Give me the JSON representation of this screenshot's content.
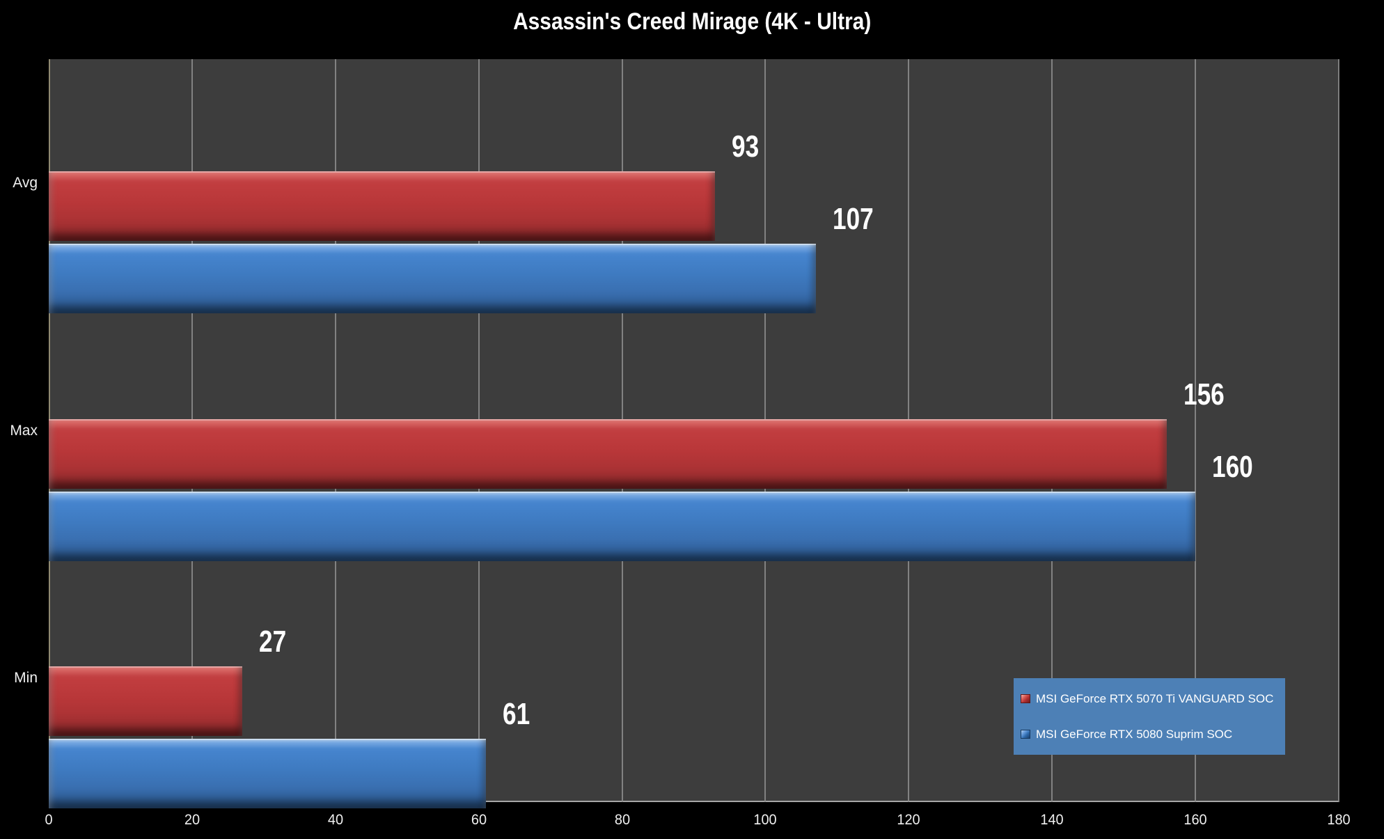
{
  "title": "Assassin's Creed Mirage (4K - Ultra)",
  "chart_data": {
    "type": "bar",
    "orientation": "horizontal",
    "title": "Assassin's Creed Mirage (4K - Ultra)",
    "categories": [
      "Avg",
      "Max",
      "Min"
    ],
    "series": [
      {
        "name": "MSI GeForce RTX 5070 Ti VANGUARD SOC",
        "color": "#bf3a3c",
        "values": [
          93,
          156,
          27
        ]
      },
      {
        "name": "MSI GeForce RTX 5080 Suprim SOC",
        "color": "#3d78bd",
        "values": [
          107,
          160,
          61
        ]
      }
    ],
    "data_labels": [
      [
        "93",
        "156",
        "27"
      ],
      [
        "107",
        "160",
        "61"
      ]
    ],
    "xlabel": "",
    "ylabel": "",
    "xlim": [
      0,
      180
    ],
    "xticks": [
      0,
      20,
      40,
      60,
      80,
      100,
      120,
      140,
      160,
      180
    ],
    "grid": true,
    "legend_position": "bottom-right"
  },
  "colors": {
    "page_background": "#000000",
    "plot_background": "#3d3d3d",
    "gridline": "#8e8e8e",
    "axis_line": "#a6a6a6",
    "text": "#ffffff",
    "legend_background": "#4d80b6",
    "series_red": "#bf3a3c",
    "series_blue": "#3d78bd"
  }
}
